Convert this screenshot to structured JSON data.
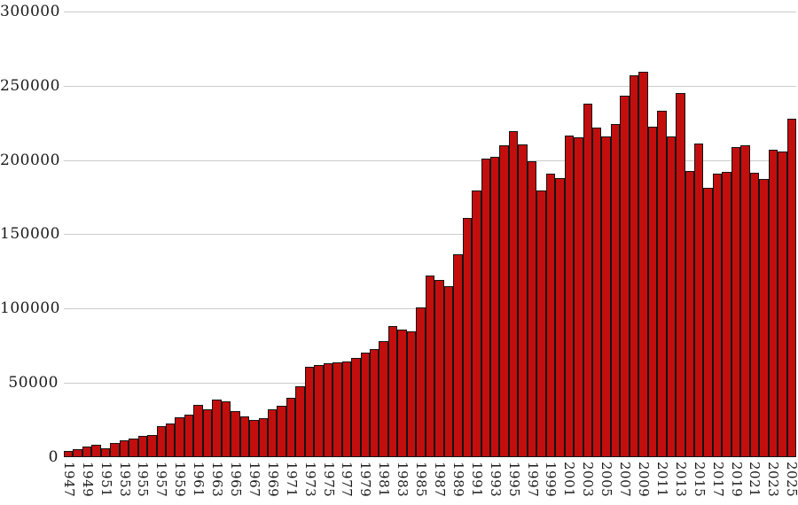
{
  "chart_data": {
    "type": "bar",
    "title": "",
    "xlabel": "",
    "ylabel": "",
    "ylim": [
      0,
      300000
    ],
    "y_ticks": [
      0,
      50000,
      100000,
      150000,
      200000,
      250000,
      300000
    ],
    "y_tick_labels": [
      "0",
      "50000",
      "100000",
      "150000",
      "200000",
      "250000",
      "300000"
    ],
    "x_tick_years": [
      1947,
      1949,
      1951,
      1953,
      1955,
      1957,
      1959,
      1961,
      1963,
      1965,
      1967,
      1969,
      1971,
      1973,
      1975,
      1977,
      1979,
      1981,
      1983,
      1985,
      1987,
      1989,
      1991,
      1993,
      1995,
      1997,
      1999,
      2001,
      2003,
      2005,
      2007,
      2009,
      2011,
      2013,
      2015,
      2017,
      2019,
      2021,
      2023,
      2025
    ],
    "grid": "horizontal",
    "legend": "none",
    "categories": [
      1947,
      1948,
      1949,
      1950,
      1951,
      1952,
      1953,
      1954,
      1955,
      1956,
      1957,
      1958,
      1959,
      1960,
      1961,
      1962,
      1963,
      1964,
      1965,
      1966,
      1967,
      1968,
      1969,
      1970,
      1971,
      1972,
      1973,
      1974,
      1975,
      1976,
      1977,
      1978,
      1979,
      1980,
      1981,
      1982,
      1983,
      1984,
      1985,
      1986,
      1987,
      1988,
      1989,
      1990,
      1991,
      1992,
      1993,
      1994,
      1995,
      1996,
      1997,
      1998,
      1999,
      2000,
      2001,
      2002,
      2003,
      2004,
      2005,
      2006,
      2007,
      2008,
      2009,
      2010,
      2011,
      2012,
      2013,
      2014,
      2015,
      2016,
      2017,
      2018,
      2019,
      2020,
      2021,
      2022,
      2023,
      2024,
      2025
    ],
    "values": [
      4200,
      5400,
      7000,
      8500,
      5800,
      9400,
      11200,
      12300,
      14300,
      14700,
      21000,
      22400,
      27000,
      28400,
      35300,
      32300,
      38700,
      37700,
      31100,
      27200,
      25200,
      26100,
      32500,
      34400,
      40000,
      48000,
      61000,
      62000,
      63000,
      63600,
      64400,
      67000,
      70500,
      73000,
      78000,
      88500,
      85600,
      84400,
      100500,
      122000,
      119000,
      115000,
      136500,
      161000,
      179500,
      201000,
      202000,
      210000,
      219500,
      210500,
      199200,
      179500,
      190600,
      188100,
      216500,
      215500,
      237700,
      221800,
      215900,
      224200,
      243300,
      257100,
      259500,
      222300,
      233300,
      215900,
      245200,
      192700,
      210900,
      181200,
      190700,
      192300,
      208500,
      209900,
      191500,
      187200,
      207000,
      206000,
      227700
    ]
  },
  "colors": {
    "bar_fill": "#c30e0e",
    "bar_border": "#141414",
    "gridline": "#cccccc",
    "text": "#1a1a1a",
    "background": "#ffffff"
  }
}
